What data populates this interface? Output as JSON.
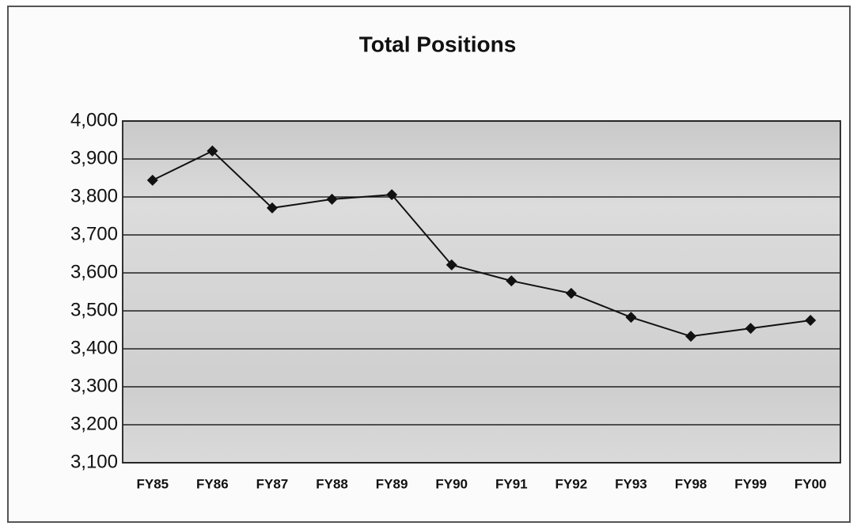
{
  "chart_data": {
    "type": "line",
    "title": "Total Positions",
    "categories": [
      "FY85",
      "FY86",
      "FY87",
      "FY88",
      "FY89",
      "FY90",
      "FY91",
      "FY92",
      "FY93",
      "FY98",
      "FY99",
      "FY00"
    ],
    "series": [
      {
        "name": "Total Positions",
        "color": "#111111",
        "values": [
          3844,
          3921,
          3771,
          3794,
          3806,
          3621,
          3579,
          3546,
          3483,
          3433,
          3454,
          3475
        ]
      }
    ],
    "ylim": [
      3100,
      4000
    ],
    "yticks": [
      {
        "value": 3100,
        "label": "3,100"
      },
      {
        "value": 3200,
        "label": "3,200"
      },
      {
        "value": 3300,
        "label": "3,300"
      },
      {
        "value": 3400,
        "label": "3,400"
      },
      {
        "value": 3500,
        "label": "3,500"
      },
      {
        "value": 3600,
        "label": "3,600"
      },
      {
        "value": 3700,
        "label": "3,700"
      },
      {
        "value": 3800,
        "label": "3,800"
      },
      {
        "value": 3900,
        "label": "3,900"
      },
      {
        "value": 4000,
        "label": "4,000"
      }
    ],
    "grid": true
  }
}
